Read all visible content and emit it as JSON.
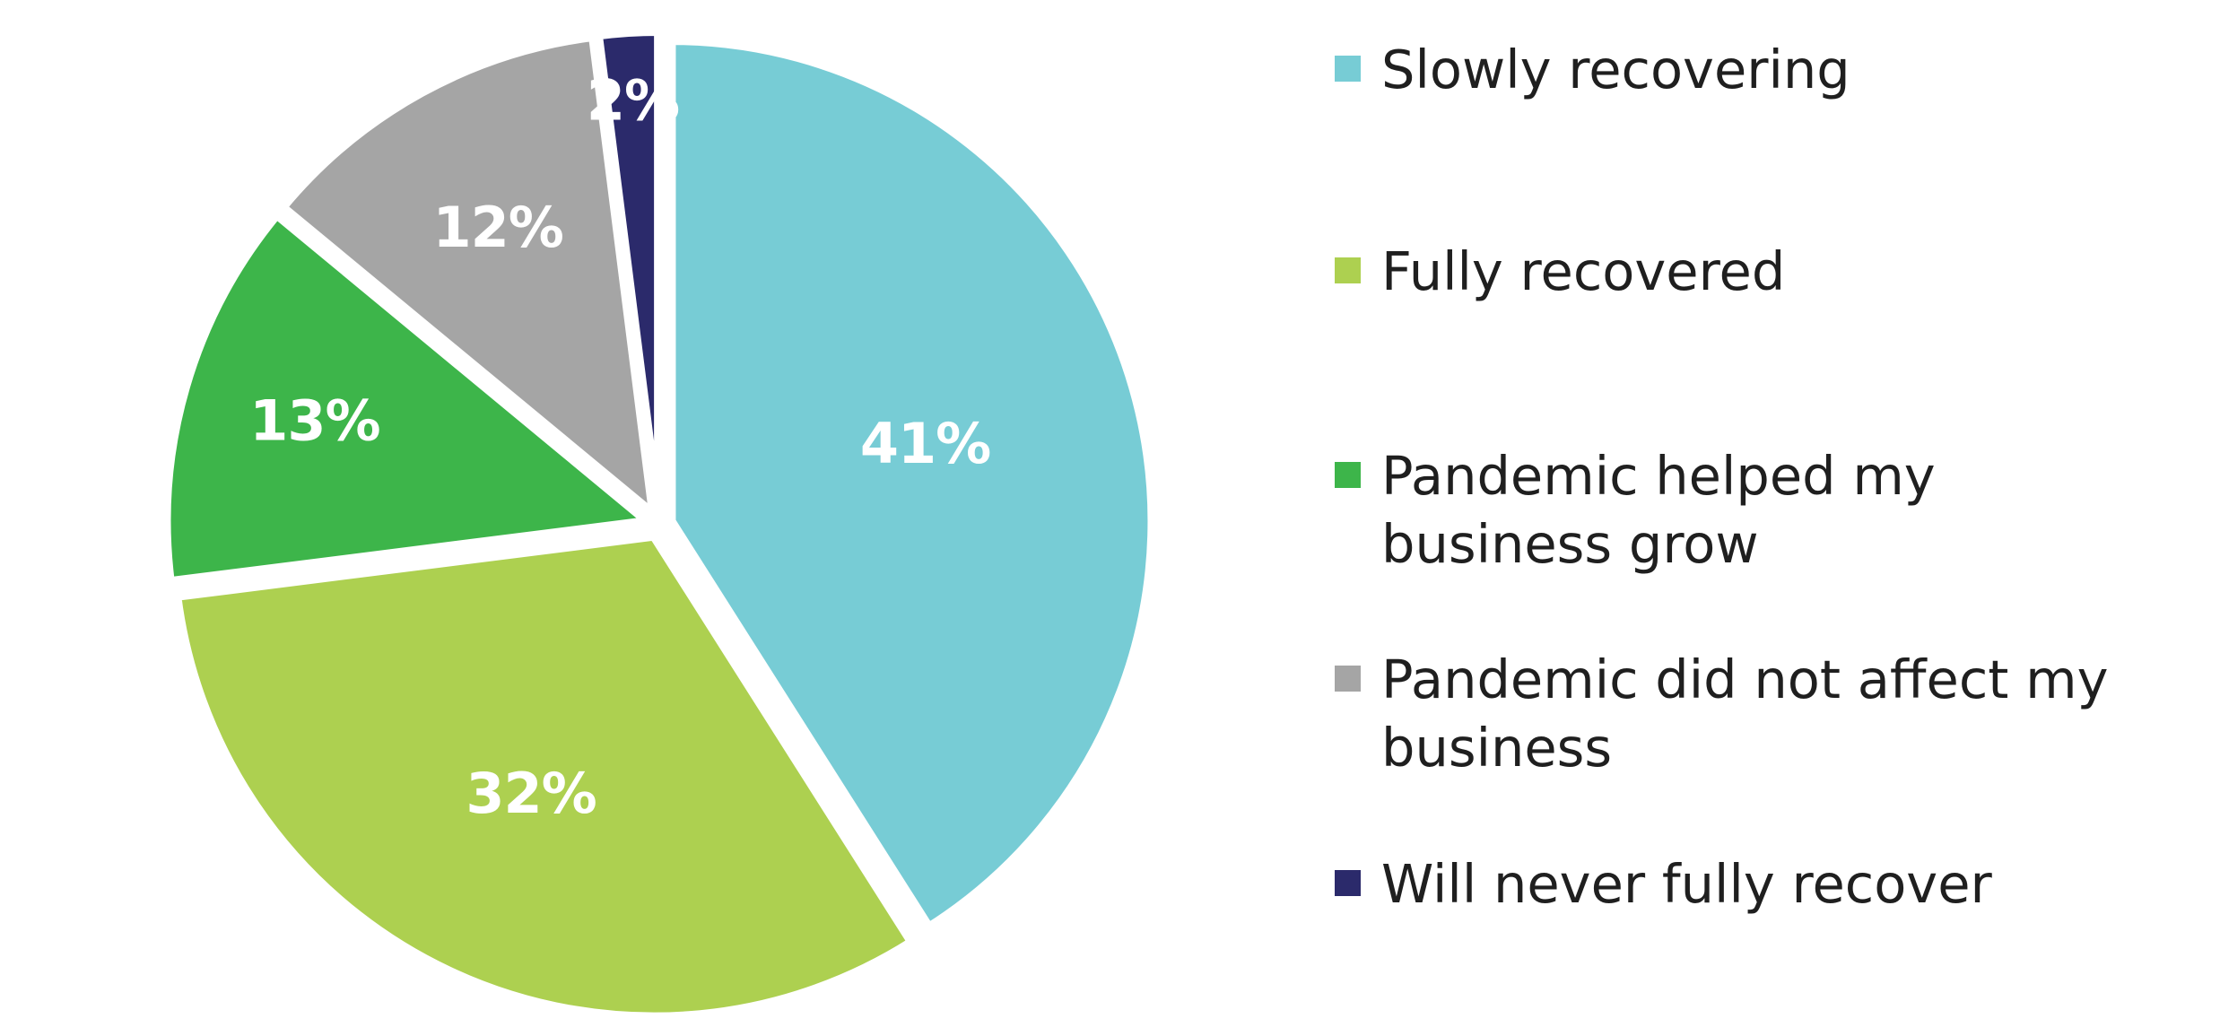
{
  "chart_data": {
    "type": "pie",
    "title": "",
    "start_angle_deg": 0,
    "direction": "clockwise",
    "slices": [
      {
        "label": "Slowly recovering",
        "value": 41,
        "display": "41%",
        "color": "#77ccd5"
      },
      {
        "label": "Fully recovered",
        "value": 32,
        "display": "32%",
        "color": "#add050"
      },
      {
        "label": "Pandemic helped my business grow",
        "value": 13,
        "display": "13%",
        "color": "#3db54a"
      },
      {
        "label": "Pandemic did not affect my business",
        "value": 12,
        "display": "12%",
        "color": "#a5a5a5"
      },
      {
        "label": "Will never fully recover",
        "value": 2,
        "display": "2%",
        "color": "#2b2a6b"
      }
    ],
    "legend": {
      "placement": "right",
      "items": [
        {
          "label": "Slowly recovering",
          "color": "#77ccd5"
        },
        {
          "label": "Fully recovered",
          "color": "#add050"
        },
        {
          "label": "Pandemic helped my business grow",
          "color": "#3db54a"
        },
        {
          "label": "Pandemic did not affect my business",
          "color": "#a5a5a5"
        },
        {
          "label": "Will never fully recover",
          "color": "#2b2a6b"
        }
      ]
    }
  }
}
